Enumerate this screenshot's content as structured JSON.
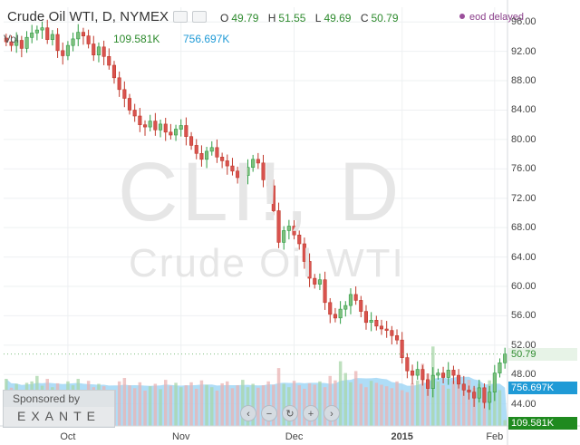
{
  "header": {
    "symbol_line": "Crude Oil WTI, D, NYMEX",
    "ohlc": [
      {
        "key": "O",
        "value": "49.79"
      },
      {
        "key": "H",
        "value": "51.55"
      },
      {
        "key": "L",
        "value": "49.69"
      },
      {
        "key": "C",
        "value": "50.79"
      }
    ],
    "status": "eod delayed"
  },
  "volume_line": {
    "label": "Vol",
    "value1": "109.581K",
    "value2": "756.697K"
  },
  "watermark": {
    "line1": "CLI!, D",
    "line2": "Crude Oil WTI"
  },
  "sponsor": {
    "caption": "Sponsored by",
    "brand": "EXANTE"
  },
  "nav": {
    "buttons": [
      {
        "name": "scroll-left-button",
        "glyph": "‹"
      },
      {
        "name": "zoom-out-button",
        "glyph": "−"
      },
      {
        "name": "reset-button",
        "glyph": "↻"
      },
      {
        "name": "zoom-in-button",
        "glyph": "+"
      },
      {
        "name": "scroll-right-button",
        "glyph": "›"
      }
    ]
  },
  "price_tags": {
    "last_price": "50.79",
    "volume_ma": "756.697K",
    "volume": "109.581K"
  },
  "colors": {
    "up": "#2f9e44",
    "down": "#c0392b",
    "up_fill": "#7fbf7f",
    "down_fill": "#d9534f",
    "volume_area": "#9bd4f5",
    "volume_bar": "#a9c6e8",
    "last_price": "#2e8b2e",
    "volume_ma_tag": "#1f9ad6"
  },
  "chart_data": {
    "type": "candlestick",
    "y_axis": {
      "min": 41,
      "max": 98,
      "ticks": [
        44,
        48,
        52,
        56,
        60,
        64,
        68,
        72,
        76,
        80,
        84,
        88,
        92,
        96
      ],
      "tick_labels": [
        "44.00",
        "48.00",
        "52.00",
        "56.00",
        "60.00",
        "64.00",
        "68.00",
        "72.00",
        "76.00",
        "80.00",
        "84.00",
        "88.00",
        "92.00",
        "96.00"
      ]
    },
    "x_axis": {
      "labels": [
        "Oct",
        "Nov",
        "Dec",
        "2015",
        "Feb"
      ],
      "label_bar_index": [
        12,
        34,
        56,
        77,
        95
      ],
      "bold_label": "2015"
    },
    "close": [
      93.3,
      92.8,
      93.5,
      92.4,
      93.9,
      94.5,
      94.9,
      95.2,
      93.6,
      94.3,
      92.1,
      91.4,
      92.8,
      93.7,
      94.6,
      94.1,
      93.0,
      91.5,
      92.6,
      91.3,
      90.1,
      88.4,
      86.8,
      85.6,
      84.0,
      83.2,
      82.0,
      81.7,
      82.5,
      81.3,
      82.1,
      81.0,
      80.6,
      81.4,
      81.9,
      80.4,
      79.2,
      78.1,
      77.3,
      78.4,
      78.9,
      77.6,
      77.1,
      76.4,
      75.7,
      74.8,
      75.1,
      76.2,
      77.3,
      76.8,
      74.5,
      73.7,
      70.3,
      66.0,
      67.6,
      68.2,
      67.0,
      65.8,
      63.4,
      61.1,
      60.3,
      60.9,
      57.8,
      56.2,
      55.7,
      56.9,
      57.4,
      58.9,
      58.1,
      56.6,
      55.1,
      55.4,
      54.6,
      54.2,
      54.0,
      53.3,
      52.7,
      50.3,
      48.5,
      47.9,
      48.7,
      47.3,
      46.1,
      47.9,
      48.2,
      47.6,
      48.6,
      47.9,
      46.7,
      45.9,
      45.6,
      44.8,
      46.2,
      44.2,
      45.6,
      48.2,
      49.6,
      50.8
    ],
    "volume": [
      0.96,
      0.78,
      0.86,
      0.74,
      0.88,
      0.91,
      1.02,
      0.82,
      0.96,
      0.79,
      0.87,
      0.71,
      0.91,
      0.83,
      0.96,
      0.74,
      0.92,
      0.79,
      0.86,
      0.81,
      0.71,
      0.74,
      0.91,
      0.98,
      0.83,
      0.77,
      0.89,
      0.72,
      0.81,
      0.86,
      0.75,
      0.94,
      0.82,
      0.88,
      0.79,
      0.83,
      0.89,
      0.76,
      0.93,
      0.84,
      0.79,
      0.72,
      0.87,
      0.91,
      0.77,
      0.83,
      0.94,
      0.79,
      0.86,
      0.78,
      0.83,
      0.91,
      0.84,
      1.18,
      0.86,
      0.79,
      0.92,
      0.83,
      0.76,
      0.87,
      0.84,
      0.91,
      0.79,
      1.02,
      0.93,
      1.32,
      1.08,
      0.89,
      1.12,
      0.86,
      0.79,
      0.92,
      0.88,
      0.84,
      0.81,
      0.77,
      0.91,
      0.73,
      0.69,
      0.87,
      0.93,
      1.27,
      1.07,
      1.62,
      0.91,
      0.83,
      0.76,
      0.92,
      0.88,
      0.81,
      0.94,
      0.78,
      0.86,
      0.79,
      0.93,
      0.98,
      0.73,
      0.12
    ],
    "last": {
      "open": 49.79,
      "high": 51.55,
      "low": 49.69,
      "close": 50.79
    }
  }
}
